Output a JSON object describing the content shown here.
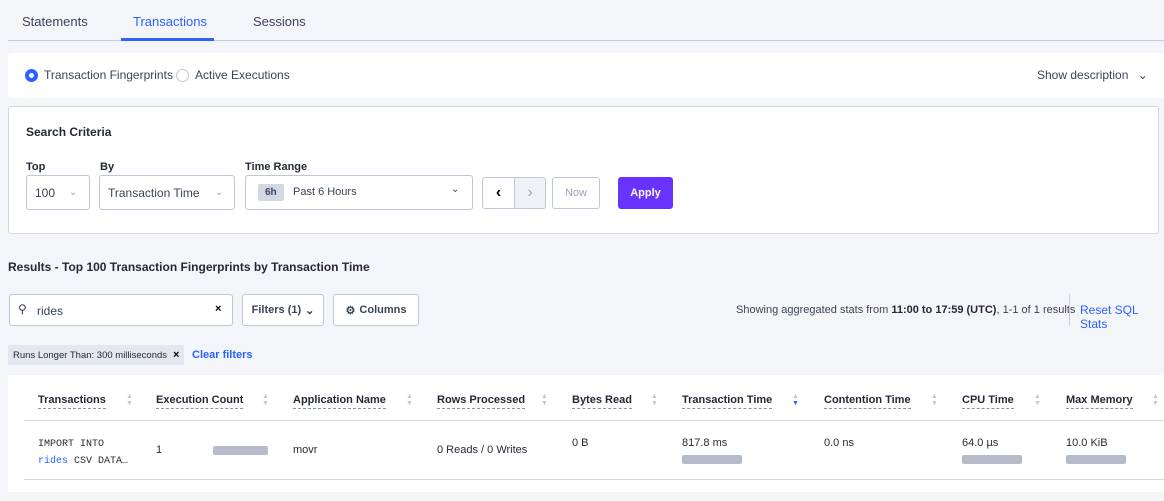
{
  "tabs": [
    {
      "label": "Statements"
    },
    {
      "label": "Transactions",
      "active": true
    },
    {
      "label": "Sessions"
    }
  ],
  "view_toggle": {
    "options": [
      {
        "label": "Transaction Fingerprints",
        "selected": true
      },
      {
        "label": "Active Executions",
        "selected": false
      }
    ],
    "show_description": "Show description"
  },
  "search_criteria": {
    "title": "Search Criteria",
    "top_label": "Top",
    "top_value": "100",
    "by_label": "By",
    "by_value": "Transaction Time",
    "time_range_label": "Time Range",
    "time_badge": "6h",
    "time_value": "Past 6 Hours",
    "now_label": "Now",
    "apply_label": "Apply"
  },
  "results": {
    "heading": "Results - Top 100 Transaction Fingerprints by Transaction Time",
    "search_value": "rides",
    "filters_label": "Filters (1)",
    "columns_label": "Columns",
    "summary_prefix": "Showing aggregated stats from ",
    "summary_bold": "11:00 to 17:59 (UTC)",
    "summary_suffix": ", 1-1 of 1 results",
    "reset_label": "Reset SQL Stats",
    "filter_chip": "Runs Longer Than: 300 milliseconds",
    "clear_filters": "Clear filters"
  },
  "table": {
    "columns": [
      "Transactions",
      "Execution Count",
      "Application Name",
      "Rows Processed",
      "Bytes Read",
      "Transaction Time",
      "Contention Time",
      "CPU Time",
      "Max Memory"
    ],
    "sorted_column": "Transaction Time",
    "sort_direction": "descending",
    "rows": [
      {
        "txn_line1": "IMPORT INTO",
        "txn_highlight": "rides",
        "txn_rest": " CSV DATA…",
        "execution_count": "1",
        "application_name": "movr",
        "rows_processed": "0 Reads / 0 Writes",
        "bytes_read": "0 B",
        "transaction_time": "817.8 ms",
        "contention_time": "0.0 ns",
        "cpu_time": "64.0 µs",
        "max_memory": "10.0 KiB"
      }
    ]
  },
  "colors": {
    "accent": "#2962ff",
    "apply": "#6933ff"
  }
}
